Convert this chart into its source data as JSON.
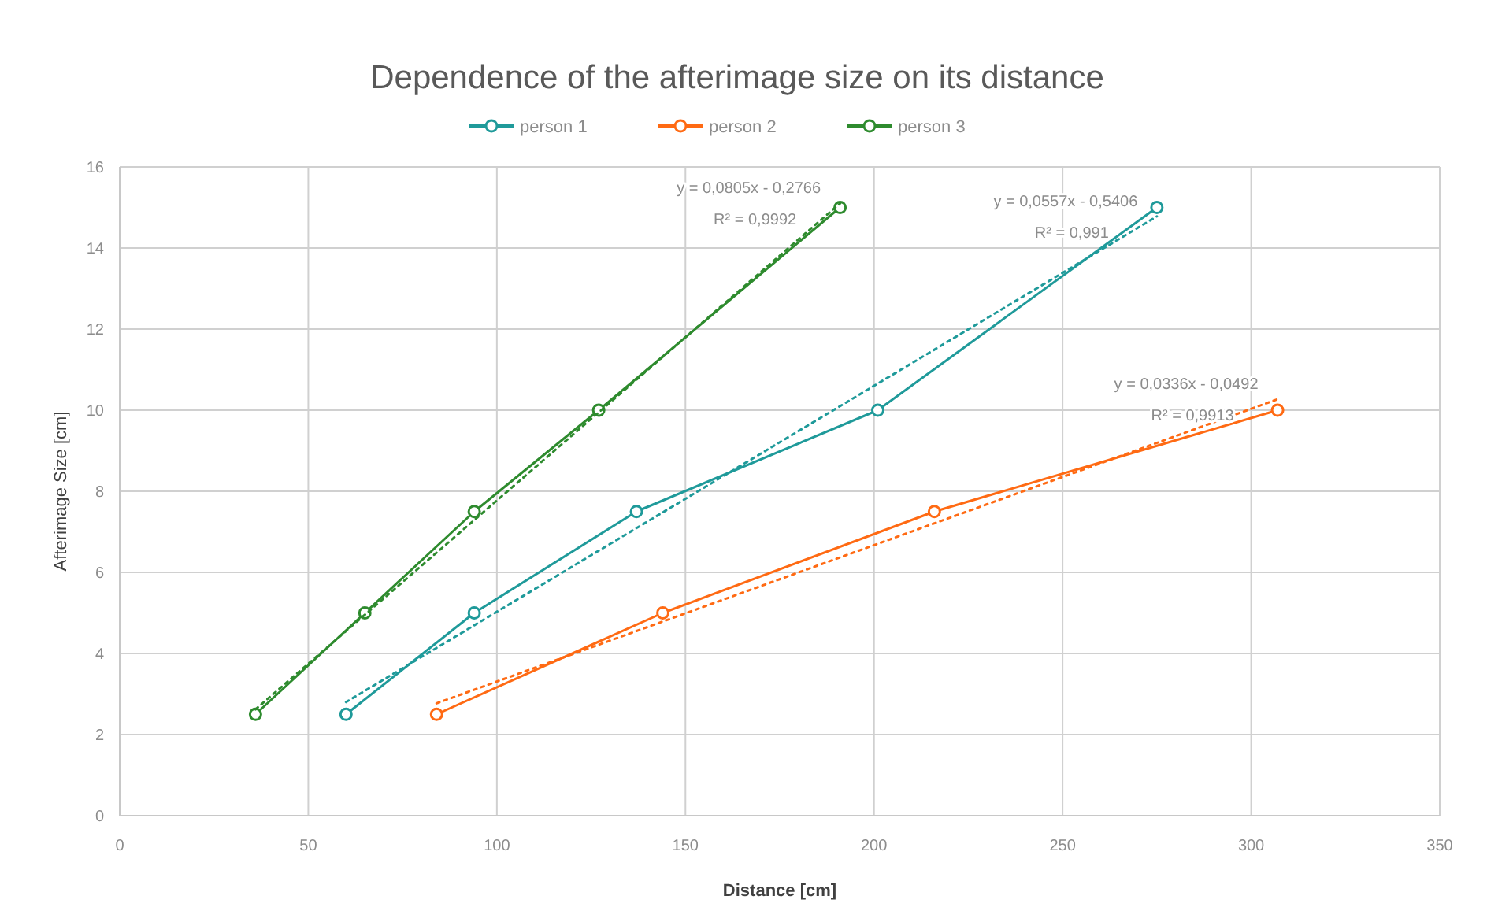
{
  "chart_data": {
    "type": "line",
    "title": "Dependence of the afterimage size on its distance",
    "xlabel": "Distance [cm]",
    "ylabel": "Afterimage Size [cm]",
    "xlim": [
      0,
      350
    ],
    "xticks": [
      0,
      50,
      100,
      150,
      200,
      250,
      300,
      350
    ],
    "ylim": [
      0,
      16
    ],
    "yticks": [
      0,
      2,
      4,
      6,
      8,
      10,
      12,
      14,
      16
    ],
    "grid": true,
    "legend": "top",
    "marker": "circle",
    "line_style": "solid",
    "series": [
      {
        "name": "person 1",
        "color": "#1f9a9a",
        "x": [
          60,
          94,
          137,
          201,
          275
        ],
        "values": [
          2.5,
          5,
          7.5,
          10,
          15
        ]
      },
      {
        "name": "person 2",
        "color": "#ff6a13",
        "x": [
          84,
          144,
          216,
          307
        ],
        "values": [
          2.5,
          5,
          7.5,
          10
        ]
      },
      {
        "name": "person 3",
        "color": "#2e8b2e",
        "x": [
          36,
          65,
          94,
          127,
          191
        ],
        "values": [
          2.5,
          5,
          7.5,
          10,
          15
        ]
      },
      {
        "type": "line",
        "color": "#2e8b2e",
        "x": [
          36,
          191
        ],
        "values": [
          2.62,
          15.1
        ],
        "line_style": "dotted",
        "marker": "none"
      },
      {
        "type": "line",
        "color": "#1f9a9a",
        "x": [
          60,
          275
        ],
        "values": [
          2.8,
          14.78
        ],
        "line_style": "dotted",
        "marker": "none"
      },
      {
        "type": "line",
        "color": "#ff6a13",
        "x": [
          84,
          307
        ],
        "values": [
          2.77,
          10.27
        ],
        "line_style": "dotted",
        "marker": "none"
      }
    ],
    "annotations": [
      "y = 0,0805x - 0,2766",
      "R² = 0,9992",
      "y = 0,0557x - 0,5406",
      "R² = 0,991",
      "y = 0,0336x - 0,0492",
      "R² = 0,9913"
    ]
  }
}
